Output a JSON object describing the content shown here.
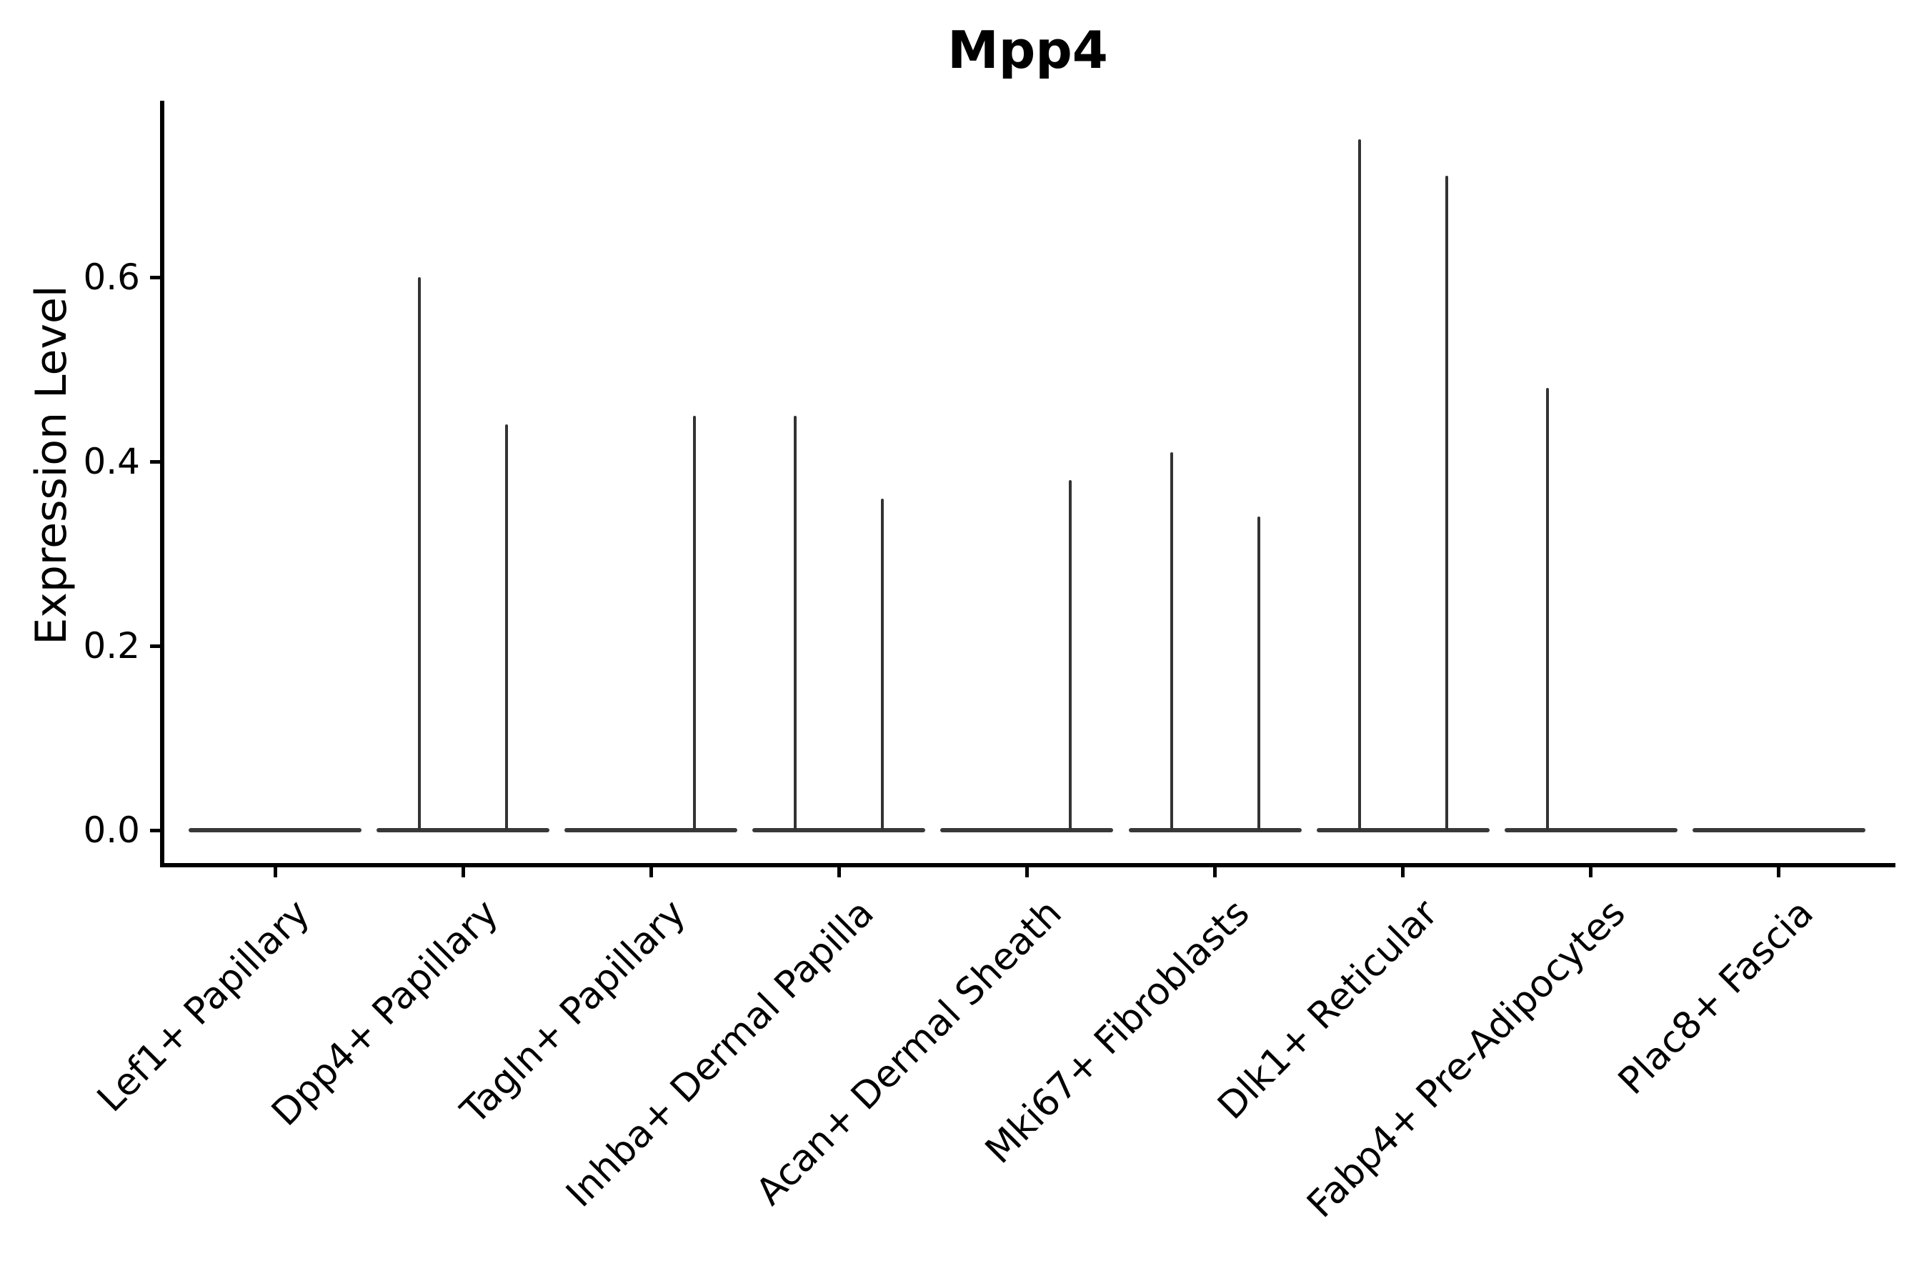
{
  "figure": {
    "title": "Mpp4",
    "ylabel": "Expression Level"
  },
  "colors": {
    "background": "#ffffff",
    "axis": "#000000",
    "text": "#000000",
    "violin": "#383838"
  },
  "chart_data": {
    "type": "violin",
    "title": "Mpp4",
    "xlabel": "",
    "ylabel": "Expression Level",
    "legend": "none",
    "grid": false,
    "ylim": [
      -0.04,
      0.79
    ],
    "yticks": [
      0,
      0.2,
      0.4,
      0.6
    ],
    "ytick_labels": [
      "0.0",
      "0.2",
      "0.4",
      "0.6"
    ],
    "categories": [
      "Lef1+ Papillary",
      "Dpp4+ Papillary",
      "Tagln+ Papillary",
      "Inhba+ Dermal Papilla",
      "Acan+ Dermal Sheath",
      "Mki67+ Fibroblasts",
      "Dlk1+ Reticular",
      "Fabp4+ Pre-Adipocytes",
      "Plac8+ Fascia"
    ],
    "violins_per_category": 2,
    "baseline_value": 0,
    "series": [
      {
        "name": "violin-left",
        "peak_expression": [
          0,
          0.6,
          0,
          0.45,
          0,
          0.41,
          0.75,
          0.48,
          0
        ]
      },
      {
        "name": "violin-right",
        "peak_expression": [
          0,
          0.44,
          0.45,
          0.36,
          0.38,
          0.34,
          0.71,
          0,
          0
        ]
      }
    ]
  }
}
